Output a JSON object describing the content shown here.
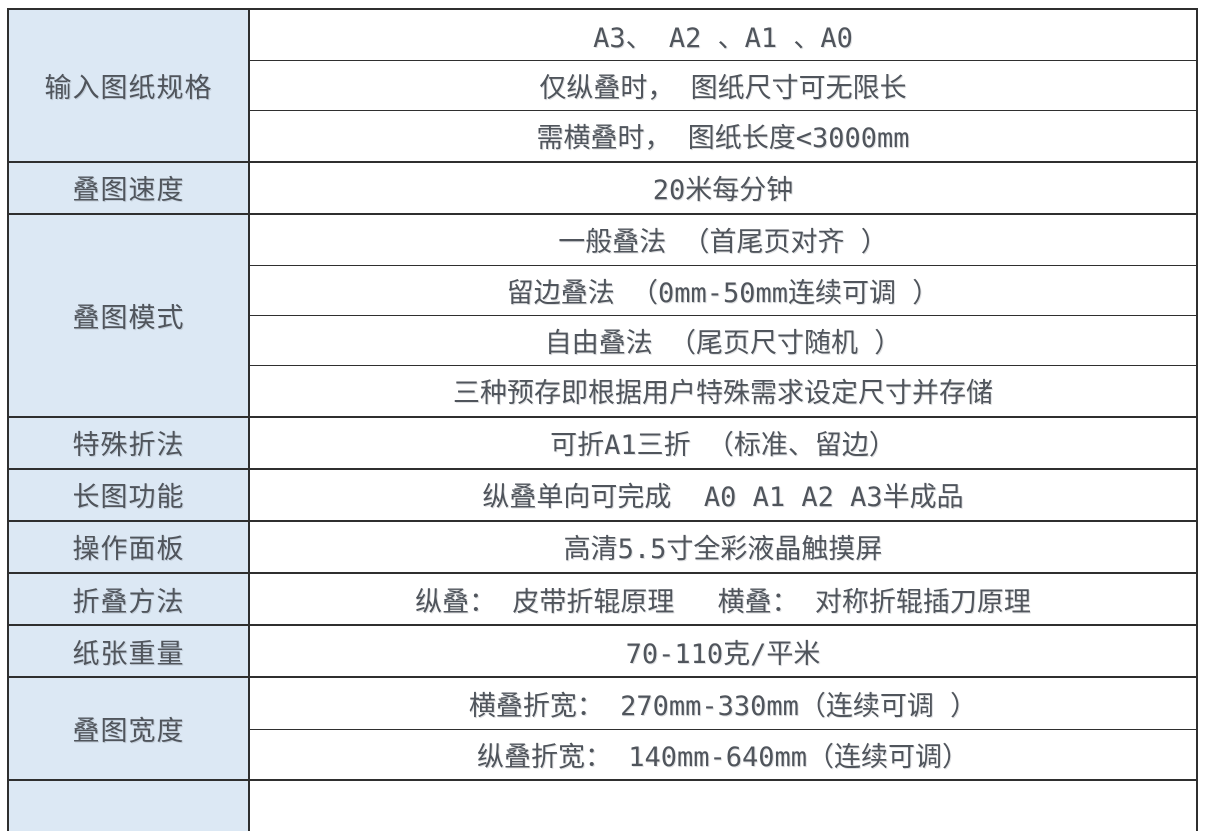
{
  "colors": {
    "label_bg": "#dce8f4",
    "border": "#2f2f2f",
    "text": "#50555c",
    "value_bg": "#ffffff"
  },
  "table": {
    "groups": [
      {
        "label": "输入图纸规格",
        "values": [
          "A3、 A2 、A1 、A0",
          "仅纵叠时， 图纸尺寸可无限长",
          "需横叠时， 图纸长度<3000mm"
        ]
      },
      {
        "label": "叠图速度",
        "values": [
          "20米每分钟"
        ]
      },
      {
        "label": "叠图模式",
        "values": [
          "一般叠法 （首尾页对齐 ）",
          "留边叠法 （0mm-50mm连续可调 ）",
          "自由叠法 （尾页尺寸随机 ）",
          "三种预存即根据用户特殊需求设定尺寸并存储"
        ]
      },
      {
        "label": "特殊折法",
        "values": [
          "可折A1三折 （标准、留边）"
        ]
      },
      {
        "label": "长图功能",
        "values": [
          "纵叠单向可完成  A0 A1 A2 A3半成品"
        ]
      },
      {
        "label": "操作面板",
        "values": [
          "高清5.5寸全彩液晶触摸屏"
        ]
      },
      {
        "label": "折叠方法",
        "values": [
          "纵叠： 皮带折辊原理　 横叠： 对称折辊插刀原理"
        ]
      },
      {
        "label": "纸张重量",
        "values": [
          "70-110克/平米"
        ]
      },
      {
        "label": "叠图宽度",
        "values": [
          "横叠折宽： 270mm-330mm（连续可调 ）",
          "纵叠折宽： 140mm-640mm（连续可调）"
        ]
      }
    ],
    "clipped_row": {
      "label": "",
      "values": [
        ""
      ]
    }
  }
}
